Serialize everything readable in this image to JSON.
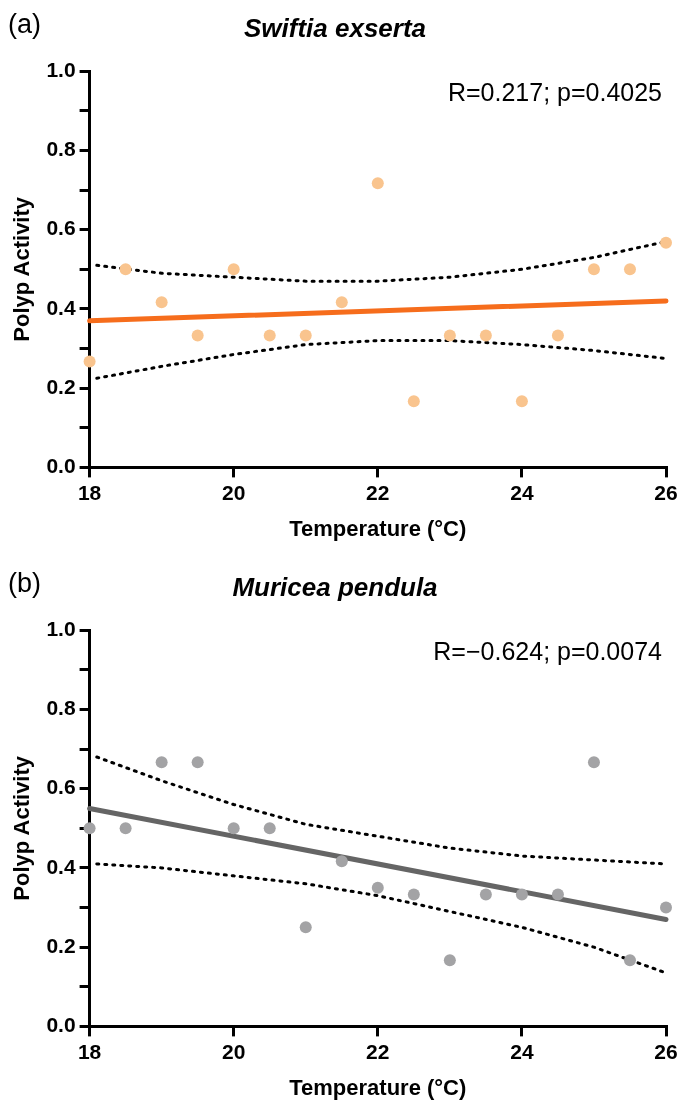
{
  "chart_data": [
    {
      "type": "scatter",
      "title": "Swiftia exserta",
      "xlabel": "Temperature (°C)",
      "ylabel": "Polyp Activity",
      "xlim": [
        18,
        26
      ],
      "xticks": [
        18,
        20,
        22,
        24,
        26
      ],
      "ylim": [
        0,
        1
      ],
      "yticks": [
        {
          "value": 0,
          "label": "0.0"
        },
        {
          "value": 0.1,
          "label": null
        },
        0.2,
        {
          "value": 0.3,
          "label": null
        },
        0.4,
        {
          "value": 0.5,
          "label": null
        },
        0.6,
        {
          "value": 0.7,
          "label": null
        },
        0.8,
        {
          "value": 0.9,
          "label": null
        },
        {
          "value": 1,
          "label": "1.0"
        }
      ],
      "grid": false,
      "legend": false,
      "marker": "circle",
      "annotations": [
        "(a)",
        "R=0.217; p=0.4025"
      ],
      "series": [
        {
          "type": "scatter",
          "color": "#f9c48e",
          "x": [
            18,
            18.5,
            19,
            19.5,
            20,
            20.5,
            21,
            21.5,
            22,
            22.5,
            23,
            23.5,
            24,
            24.5,
            25,
            25.5,
            26
          ],
          "values": [
            0.267,
            0.5,
            0.417,
            0.333,
            0.5,
            0.333,
            0.333,
            0.417,
            0.717,
            0.167,
            0.333,
            0.333,
            0.167,
            0.333,
            0.5,
            0.5,
            0.567
          ]
        },
        {
          "type": "line",
          "color": "#f66d1c",
          "line_style": "solid",
          "marker": "none",
          "x": [
            18,
            26
          ],
          "values": [
            0.37,
            0.42
          ]
        },
        {
          "type": "line",
          "color": "#000000",
          "line_style": "dotted",
          "marker": "none",
          "x": [
            18.1,
            19,
            20,
            21,
            22,
            23,
            24,
            25,
            26
          ],
          "values": [
            0.51,
            0.49,
            0.48,
            0.47,
            0.47,
            0.48,
            0.5,
            0.53,
            0.57
          ]
        },
        {
          "type": "line",
          "color": "#000000",
          "line_style": "dotted",
          "marker": "none",
          "x": [
            18.1,
            19,
            20,
            21,
            22,
            23,
            24,
            25,
            26
          ],
          "values": [
            0.225,
            0.255,
            0.285,
            0.31,
            0.32,
            0.32,
            0.31,
            0.295,
            0.275
          ]
        }
      ]
    },
    {
      "type": "scatter",
      "title": "Muricea pendula",
      "xlabel": "Temperature (°C)",
      "ylabel": "Polyp Activity",
      "xlim": [
        18,
        26
      ],
      "xticks": [
        18,
        20,
        22,
        24,
        26
      ],
      "ylim": [
        0,
        1
      ],
      "yticks": [
        {
          "value": 0,
          "label": "0.0"
        },
        {
          "value": 0.1,
          "label": null
        },
        0.2,
        {
          "value": 0.3,
          "label": null
        },
        0.4,
        {
          "value": 0.5,
          "label": null
        },
        0.6,
        {
          "value": 0.7,
          "label": null
        },
        0.8,
        {
          "value": 0.9,
          "label": null
        },
        {
          "value": 1,
          "label": "1.0"
        }
      ],
      "grid": false,
      "legend": false,
      "marker": "circle",
      "annotations": [
        "(b)",
        "R=−0.624; p=0.0074"
      ],
      "series": [
        {
          "type": "scatter",
          "color": "#a3a3a5",
          "x": [
            18,
            18.5,
            19,
            19.5,
            20,
            20.5,
            21,
            21.5,
            22,
            22.5,
            23,
            23.5,
            24,
            24.5,
            25,
            25.5,
            26
          ],
          "values": [
            0.5,
            0.5,
            0.667,
            0.667,
            0.5,
            0.5,
            0.25,
            0.417,
            0.35,
            0.333,
            0.167,
            0.333,
            0.333,
            0.333,
            0.667,
            0.167,
            0.3
          ]
        },
        {
          "type": "line",
          "color": "#656565",
          "line_style": "solid",
          "marker": "none",
          "x": [
            18,
            26
          ],
          "values": [
            0.55,
            0.27
          ]
        },
        {
          "type": "line",
          "color": "#000000",
          "line_style": "dotted",
          "marker": "none",
          "x": [
            18.1,
            19,
            20,
            21,
            22,
            23,
            24,
            25,
            26
          ],
          "values": [
            0.68,
            0.62,
            0.56,
            0.51,
            0.48,
            0.45,
            0.43,
            0.42,
            0.41
          ]
        },
        {
          "type": "line",
          "color": "#000000",
          "line_style": "dotted",
          "marker": "none",
          "x": [
            18.1,
            19,
            20,
            21,
            22,
            23,
            24,
            25,
            26
          ],
          "values": [
            0.41,
            0.4,
            0.38,
            0.36,
            0.33,
            0.29,
            0.25,
            0.2,
            0.135
          ]
        }
      ]
    }
  ]
}
